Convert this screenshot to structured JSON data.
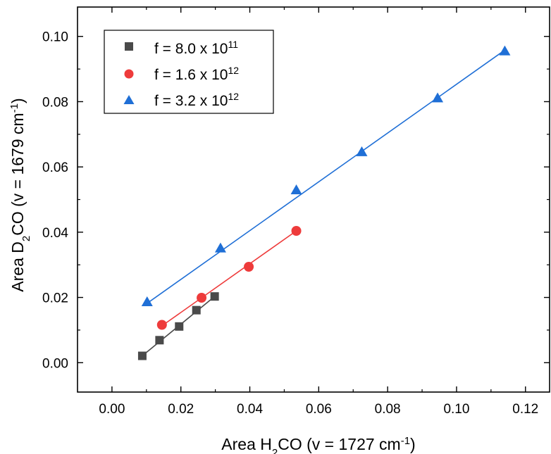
{
  "chart_data": {
    "type": "scatter",
    "xlabel": "Area H2CO (v = 1727 cm-1)",
    "ylabel": "Area D2CO (v = 1679 cm-1)",
    "xlabel_parts": {
      "a": "Area H",
      "sub": "2",
      "b": "CO (v = 1727 cm",
      "sup": "-1",
      "c": ")"
    },
    "ylabel_parts": {
      "a": "Area D",
      "sub": "2",
      "b": "CO (v = 1679 cm",
      "sup": "-1",
      "c": ")"
    },
    "xlim": [
      -0.01,
      0.127
    ],
    "ylim": [
      -0.009,
      0.109
    ],
    "x_ticks": [
      0.0,
      0.02,
      0.04,
      0.06,
      0.08,
      0.1,
      0.12
    ],
    "x_tick_labels": [
      "0.00",
      "0.02",
      "0.04",
      "0.06",
      "0.08",
      "0.10",
      "0.12"
    ],
    "y_ticks": [
      0.0,
      0.02,
      0.04,
      0.06,
      0.08,
      0.1
    ],
    "y_tick_labels": [
      "0.00",
      "0.02",
      "0.04",
      "0.06",
      "0.08",
      "0.10"
    ],
    "grid": false,
    "legend_position": "top-left",
    "series": [
      {
        "name": "f = 8.0 x 10^11",
        "legend": {
          "base": "f = 8.0 x 10",
          "exp": "11"
        },
        "marker": "square",
        "color": "#4a4a4a",
        "x": [
          0.0088,
          0.0138,
          0.0195,
          0.0245,
          0.0298
        ],
        "y": [
          0.0021,
          0.0069,
          0.0111,
          0.0161,
          0.0203
        ],
        "fit_line": [
          [
            0.0088,
            0.0021
          ],
          [
            0.0298,
            0.0203
          ]
        ]
      },
      {
        "name": "f = 1.6 x 10^12",
        "legend": {
          "base": "f = 1.6 x 10",
          "exp": "12"
        },
        "marker": "circle",
        "color": "#ee3b3b",
        "x": [
          0.0145,
          0.026,
          0.0397,
          0.0535
        ],
        "y": [
          0.0116,
          0.0199,
          0.0294,
          0.0404
        ],
        "fit_line": [
          [
            0.0145,
            0.0113
          ],
          [
            0.0535,
            0.0404
          ]
        ]
      },
      {
        "name": "f = 3.2 x 10^12",
        "legend": {
          "base": "f = 3.2 x 10",
          "exp": "12"
        },
        "marker": "triangle",
        "color": "#1f6fd6",
        "x": [
          0.0102,
          0.0315,
          0.0535,
          0.0725,
          0.0945,
          0.114
        ],
        "y": [
          0.0186,
          0.0351,
          0.0529,
          0.0646,
          0.0811,
          0.0955
        ],
        "fit_line": [
          [
            0.0102,
            0.0182
          ],
          [
            0.114,
            0.0958
          ]
        ]
      }
    ]
  }
}
